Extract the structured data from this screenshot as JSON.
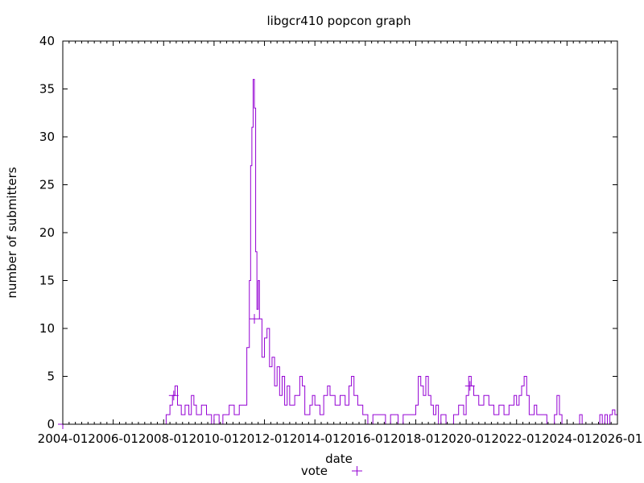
{
  "chart_data": {
    "type": "line",
    "title": "libgcr410 popcon graph",
    "xlabel": "date",
    "ylabel": "number of submitters",
    "ylim": [
      0,
      40
    ],
    "xlim": [
      "2004-01",
      "2026-01"
    ],
    "grid": false,
    "legend_position": "bottom-center",
    "yticks": [
      0,
      5,
      10,
      15,
      20,
      25,
      30,
      35,
      40
    ],
    "xticks": [
      "2004-01",
      "2006-01",
      "2008-01",
      "2010-01",
      "2012-01",
      "2014-01",
      "2016-01",
      "2018-01",
      "2020-01",
      "2022-01",
      "2024-01",
      "2026-01"
    ],
    "series": [
      {
        "name": "vote",
        "color": "#9400d3",
        "style": "steps",
        "points": [
          [
            2004.0,
            0
          ],
          [
            2007.9,
            0
          ],
          [
            2008.1,
            1
          ],
          [
            2008.25,
            2
          ],
          [
            2008.35,
            3
          ],
          [
            2008.45,
            4
          ],
          [
            2008.55,
            2
          ],
          [
            2008.7,
            1
          ],
          [
            2008.85,
            2
          ],
          [
            2009.0,
            1
          ],
          [
            2009.1,
            3
          ],
          [
            2009.2,
            2
          ],
          [
            2009.3,
            1
          ],
          [
            2009.5,
            2
          ],
          [
            2009.7,
            1
          ],
          [
            2009.9,
            0
          ],
          [
            2010.0,
            1
          ],
          [
            2010.2,
            0
          ],
          [
            2010.35,
            1
          ],
          [
            2010.6,
            2
          ],
          [
            2010.8,
            1
          ],
          [
            2011.0,
            2
          ],
          [
            2011.3,
            8
          ],
          [
            2011.4,
            15
          ],
          [
            2011.45,
            27
          ],
          [
            2011.5,
            31
          ],
          [
            2011.55,
            36
          ],
          [
            2011.6,
            33
          ],
          [
            2011.65,
            18
          ],
          [
            2011.7,
            12
          ],
          [
            2011.75,
            15
          ],
          [
            2011.8,
            11
          ],
          [
            2011.9,
            7
          ],
          [
            2012.0,
            9
          ],
          [
            2012.1,
            10
          ],
          [
            2012.2,
            6
          ],
          [
            2012.3,
            7
          ],
          [
            2012.4,
            4
          ],
          [
            2012.5,
            6
          ],
          [
            2012.6,
            3
          ],
          [
            2012.7,
            5
          ],
          [
            2012.8,
            2
          ],
          [
            2012.9,
            4
          ],
          [
            2013.0,
            2
          ],
          [
            2013.2,
            3
          ],
          [
            2013.4,
            5
          ],
          [
            2013.5,
            4
          ],
          [
            2013.6,
            1
          ],
          [
            2013.8,
            2
          ],
          [
            2013.9,
            3
          ],
          [
            2014.0,
            2
          ],
          [
            2014.2,
            1
          ],
          [
            2014.35,
            3
          ],
          [
            2014.5,
            4
          ],
          [
            2014.6,
            3
          ],
          [
            2014.8,
            2
          ],
          [
            2015.0,
            3
          ],
          [
            2015.2,
            2
          ],
          [
            2015.35,
            4
          ],
          [
            2015.45,
            5
          ],
          [
            2015.55,
            3
          ],
          [
            2015.7,
            2
          ],
          [
            2015.9,
            1
          ],
          [
            2016.1,
            0
          ],
          [
            2016.3,
            1
          ],
          [
            2016.6,
            1
          ],
          [
            2016.8,
            0
          ],
          [
            2017.0,
            1
          ],
          [
            2017.3,
            0
          ],
          [
            2017.5,
            1
          ],
          [
            2017.8,
            1
          ],
          [
            2018.0,
            2
          ],
          [
            2018.1,
            5
          ],
          [
            2018.2,
            4
          ],
          [
            2018.3,
            3
          ],
          [
            2018.4,
            5
          ],
          [
            2018.5,
            3
          ],
          [
            2018.6,
            2
          ],
          [
            2018.7,
            1
          ],
          [
            2018.8,
            2
          ],
          [
            2018.9,
            0
          ],
          [
            2019.0,
            1
          ],
          [
            2019.2,
            0
          ],
          [
            2019.5,
            1
          ],
          [
            2019.7,
            2
          ],
          [
            2019.9,
            1
          ],
          [
            2020.0,
            3
          ],
          [
            2020.1,
            5
          ],
          [
            2020.2,
            4
          ],
          [
            2020.3,
            3
          ],
          [
            2020.5,
            2
          ],
          [
            2020.7,
            3
          ],
          [
            2020.9,
            2
          ],
          [
            2021.1,
            1
          ],
          [
            2021.3,
            2
          ],
          [
            2021.5,
            1
          ],
          [
            2021.7,
            2
          ],
          [
            2021.9,
            3
          ],
          [
            2022.0,
            2
          ],
          [
            2022.1,
            3
          ],
          [
            2022.2,
            4
          ],
          [
            2022.3,
            5
          ],
          [
            2022.4,
            3
          ],
          [
            2022.5,
            1
          ],
          [
            2022.7,
            2
          ],
          [
            2022.8,
            1
          ],
          [
            2023.2,
            0
          ],
          [
            2023.5,
            1
          ],
          [
            2023.6,
            3
          ],
          [
            2023.7,
            1
          ],
          [
            2023.8,
            0
          ],
          [
            2024.5,
            1
          ],
          [
            2024.6,
            0
          ],
          [
            2025.3,
            1
          ],
          [
            2025.4,
            0
          ],
          [
            2025.5,
            1
          ],
          [
            2025.6,
            0
          ],
          [
            2025.7,
            1
          ],
          [
            2025.8,
            1.5
          ],
          [
            2025.9,
            1
          ],
          [
            2026.0,
            1
          ]
        ]
      }
    ],
    "markers": [
      {
        "x": 2008.4,
        "y": 3
      },
      {
        "x": 2011.6,
        "y": 11
      },
      {
        "x": 2020.15,
        "y": 4
      }
    ]
  },
  "legend": {
    "label": "vote",
    "symbol": "+"
  }
}
